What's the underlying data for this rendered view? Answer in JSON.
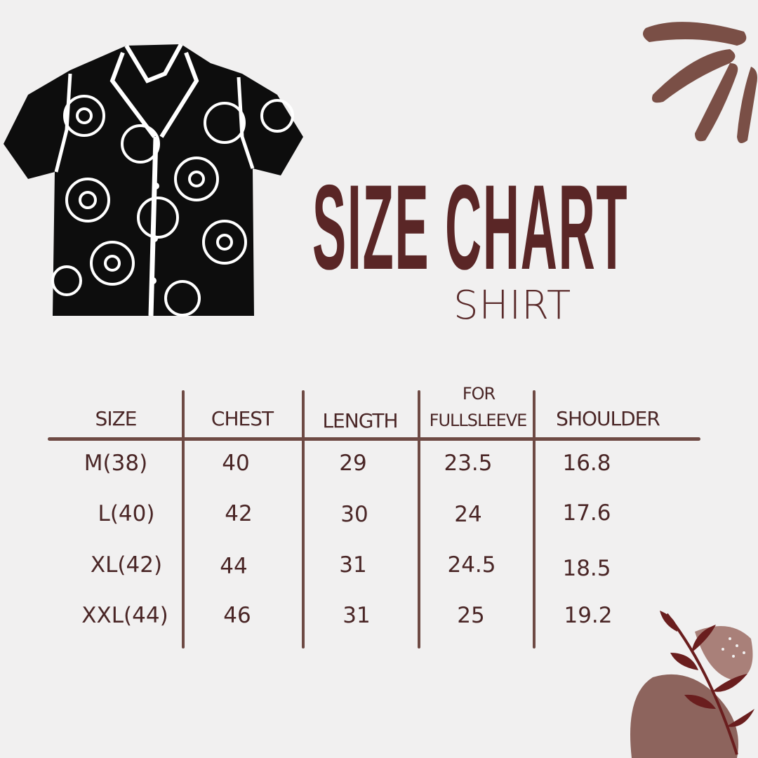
{
  "title": "SIZE CHART",
  "subtitle": "SHIRT",
  "colors": {
    "background": "#f1f0f0",
    "title": "#5a2626",
    "lines": "#6e4a44",
    "decor": "#7a4f46",
    "leaf": "#6a1e1e"
  },
  "illustration": "hawaiian-shirt-black-floral",
  "table": {
    "headers": [
      "SIZE",
      "CHEST",
      "LENGTH",
      "FOR FULLSLEEVE",
      "SHOULDER"
    ],
    "header_fullsleeve_line1": "FOR",
    "header_fullsleeve_line2": "FULLSLEEVE",
    "rows": [
      [
        "M(38)",
        "40",
        "29",
        "23.5",
        "16.8"
      ],
      [
        "L(40)",
        "42",
        "30",
        "24",
        "17.6"
      ],
      [
        "XL(42)",
        "44",
        "31",
        "24.5",
        "18.5"
      ],
      [
        "XXL(44)",
        "46",
        "31",
        "25",
        "19.2"
      ]
    ]
  }
}
